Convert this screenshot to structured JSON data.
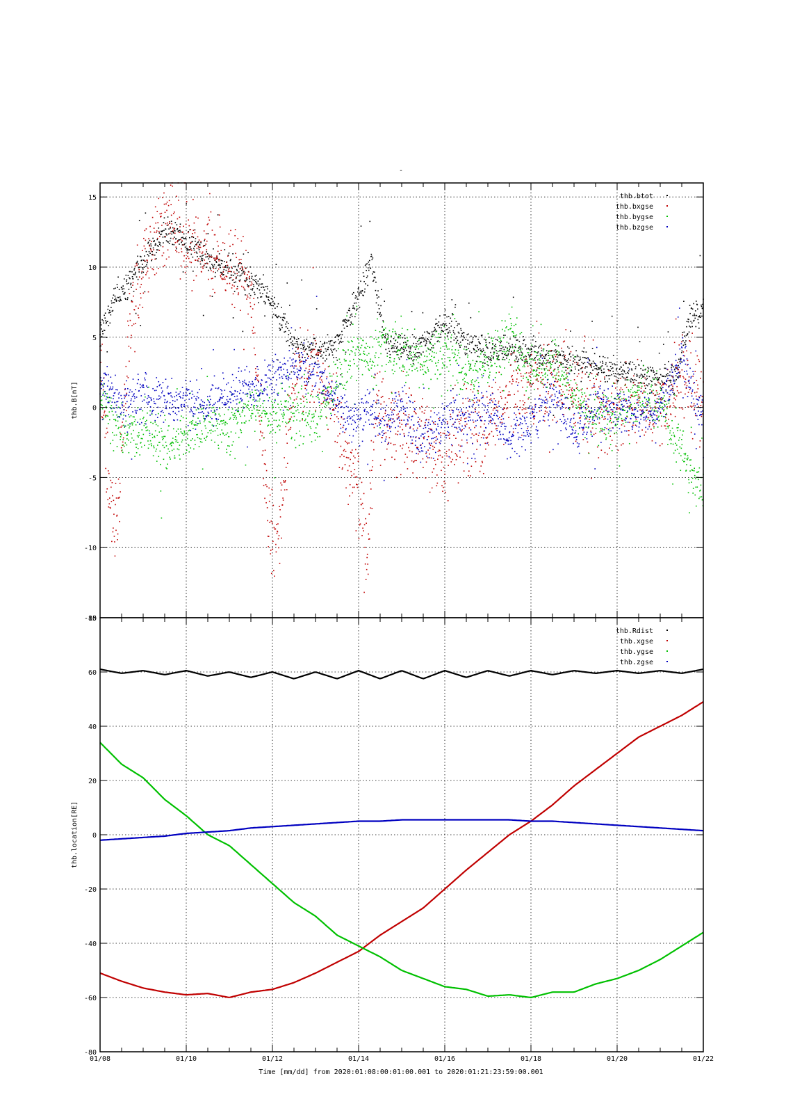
{
  "title": "-",
  "xlabel": "Time [mm/dd]  from 2020:01:08:00:01:00.001  to  2020:01:21:23:59:00.001",
  "x_ticks": [
    "01/08",
    "01/10",
    "01/12",
    "01/14",
    "01/16",
    "01/18",
    "01/20",
    "01/22"
  ],
  "x_range_days": [
    8,
    22
  ],
  "colors": {
    "black": "#000000",
    "red": "#c00000",
    "green": "#00c000",
    "blue": "#0000c0"
  },
  "chart_data": [
    {
      "type": "scatter",
      "ylabel": "thb.B[nT]",
      "ylim": [
        -15,
        16
      ],
      "y_ticks": [
        15,
        10,
        5,
        0,
        -5,
        -10,
        -15
      ],
      "grid": true,
      "legend_position": "top-right",
      "series": [
        {
          "name": "thb.btot",
          "color": "#000000",
          "x": [
            8.0,
            8.3,
            8.6,
            9.0,
            9.5,
            10.0,
            10.5,
            11.0,
            11.5,
            12.0,
            12.5,
            13.0,
            13.5,
            14.0,
            14.3,
            14.6,
            15.0,
            15.5,
            16.0,
            16.5,
            17.0,
            17.5,
            18.0,
            18.5,
            19.0,
            19.5,
            20.0,
            20.5,
            21.0,
            21.4,
            21.7,
            22.0
          ],
          "y": [
            5.0,
            7.5,
            8.5,
            10.5,
            12.5,
            12.0,
            10.5,
            10.0,
            9.0,
            7.5,
            4.5,
            4.0,
            4.5,
            8.0,
            10.5,
            4.5,
            4.0,
            4.5,
            6.0,
            4.5,
            4.0,
            4.0,
            4.0,
            3.5,
            3.5,
            3.0,
            2.5,
            2.5,
            2.0,
            2.5,
            6.5,
            7.0
          ]
        },
        {
          "name": "thb.bxgse",
          "color": "#c00000",
          "x": [
            8.0,
            8.2,
            8.4,
            8.7,
            9.0,
            9.3,
            9.6,
            9.8,
            10.0,
            10.5,
            11.0,
            11.5,
            11.9,
            12.1,
            12.5,
            13.0,
            13.5,
            14.0,
            14.2,
            14.4,
            14.7,
            15.0,
            15.5,
            16.0,
            16.5,
            17.0,
            17.5,
            18.0,
            18.5,
            19.0,
            19.5,
            20.0,
            20.5,
            21.0,
            21.5,
            22.0
          ],
          "y": [
            4.0,
            -6.0,
            -9.0,
            7.0,
            10.0,
            12.0,
            13.0,
            12.5,
            12.0,
            11.0,
            10.0,
            9.0,
            -8.0,
            -10.0,
            2.0,
            3.0,
            -1.0,
            -6.0,
            -11.0,
            1.0,
            -2.0,
            -1.5,
            -2.0,
            -4.0,
            -1.0,
            -1.5,
            0.5,
            1.5,
            2.0,
            1.0,
            -0.5,
            0.0,
            0.5,
            0.0,
            2.5,
            0.5
          ]
        },
        {
          "name": "thb.bygse",
          "color": "#00c000",
          "x": [
            8.0,
            8.3,
            8.6,
            9.0,
            9.5,
            10.0,
            10.5,
            11.0,
            11.5,
            12.0,
            12.5,
            13.0,
            13.5,
            14.0,
            14.3,
            14.6,
            15.0,
            15.5,
            16.0,
            16.5,
            17.0,
            17.5,
            18.0,
            18.5,
            19.0,
            19.5,
            20.0,
            20.5,
            21.0,
            21.5,
            21.8,
            22.0
          ],
          "y": [
            1.0,
            -1.0,
            -2.0,
            -1.5,
            -2.5,
            -2.0,
            -1.0,
            -1.5,
            0.0,
            -0.5,
            0.0,
            -1.0,
            2.0,
            4.0,
            3.0,
            4.5,
            4.0,
            3.0,
            4.0,
            2.5,
            3.0,
            5.0,
            2.5,
            3.5,
            1.0,
            -1.0,
            -0.5,
            1.0,
            0.0,
            -3.0,
            -5.5,
            -6.0
          ]
        },
        {
          "name": "thb.bzgse",
          "color": "#0000c0",
          "x": [
            8.0,
            8.3,
            8.6,
            9.0,
            9.5,
            10.0,
            10.5,
            11.0,
            11.5,
            12.0,
            12.5,
            13.0,
            13.5,
            14.0,
            14.3,
            14.6,
            15.0,
            15.5,
            16.0,
            16.5,
            17.0,
            17.5,
            18.0,
            18.5,
            19.0,
            19.5,
            20.0,
            20.5,
            21.0,
            21.5,
            21.8,
            22.0
          ],
          "y": [
            2.0,
            1.0,
            0.0,
            1.0,
            0.5,
            0.5,
            0.0,
            1.0,
            1.5,
            2.0,
            3.0,
            2.5,
            0.0,
            -1.0,
            0.0,
            -1.5,
            0.0,
            -2.5,
            -1.0,
            -1.0,
            0.0,
            -2.5,
            -1.0,
            1.0,
            -2.0,
            0.0,
            0.0,
            -0.5,
            0.0,
            4.0,
            0.5,
            -1.0
          ]
        }
      ]
    },
    {
      "type": "line",
      "ylabel": "thb.location[RE]",
      "ylim": [
        -80,
        80
      ],
      "y_ticks": [
        80,
        60,
        40,
        20,
        0,
        -20,
        -40,
        -60,
        -80
      ],
      "grid": true,
      "legend_position": "top-right",
      "series": [
        {
          "name": "thb.Rdist",
          "color": "#000000",
          "x": [
            8.0,
            8.5,
            9.0,
            9.5,
            10.0,
            10.5,
            11.0,
            11.5,
            12.0,
            12.5,
            13.0,
            13.5,
            14.0,
            14.5,
            15.0,
            15.5,
            16.0,
            16.5,
            17.0,
            17.5,
            18.0,
            18.5,
            19.0,
            19.5,
            20.0,
            20.5,
            21.0,
            21.5,
            22.0
          ],
          "y": [
            61.0,
            59.5,
            60.5,
            59.0,
            60.5,
            58.5,
            60.0,
            58.0,
            60.0,
            57.5,
            60.0,
            57.5,
            60.5,
            57.5,
            60.5,
            57.5,
            60.5,
            58.0,
            60.5,
            58.5,
            60.5,
            59.0,
            60.5,
            59.5,
            60.5,
            59.5,
            60.5,
            59.5,
            61.0
          ]
        },
        {
          "name": "thb.xgse",
          "color": "#c00000",
          "x": [
            8.0,
            8.5,
            9.0,
            9.5,
            10.0,
            10.5,
            11.0,
            11.5,
            12.0,
            12.5,
            13.0,
            13.5,
            14.0,
            14.5,
            15.0,
            15.5,
            16.0,
            16.5,
            17.0,
            17.5,
            18.0,
            18.5,
            19.0,
            19.5,
            20.0,
            20.5,
            21.0,
            21.5,
            22.0
          ],
          "y": [
            -51.0,
            -54.0,
            -56.5,
            -58.0,
            -59.0,
            -58.5,
            -60.0,
            -58.0,
            -57.0,
            -54.5,
            -51.0,
            -47.0,
            -43.0,
            -37.0,
            -32.0,
            -27.0,
            -20.0,
            -13.0,
            -6.5,
            0.0,
            5.0,
            11.0,
            18.0,
            24.0,
            30.0,
            36.0,
            40.0,
            44.0,
            49.0
          ]
        },
        {
          "name": "thb.ygse",
          "color": "#00c000",
          "x": [
            8.0,
            8.5,
            9.0,
            9.5,
            10.0,
            10.5,
            11.0,
            11.5,
            12.0,
            12.5,
            13.0,
            13.5,
            14.0,
            14.5,
            15.0,
            15.5,
            16.0,
            16.5,
            17.0,
            17.5,
            18.0,
            18.5,
            19.0,
            19.5,
            20.0,
            20.5,
            21.0,
            21.5,
            22.0
          ],
          "y": [
            34.0,
            26.0,
            21.0,
            13.0,
            7.0,
            0.0,
            -4.0,
            -11.0,
            -18.0,
            -25.0,
            -30.0,
            -37.0,
            -41.0,
            -45.0,
            -50.0,
            -53.0,
            -56.0,
            -57.0,
            -59.5,
            -59.0,
            -60.0,
            -58.0,
            -58.0,
            -55.0,
            -53.0,
            -50.0,
            -46.0,
            -41.0,
            -36.0
          ]
        },
        {
          "name": "thb.zgse",
          "color": "#0000c0",
          "x": [
            8.0,
            8.5,
            9.0,
            9.5,
            10.0,
            10.5,
            11.0,
            11.5,
            12.0,
            12.5,
            13.0,
            13.5,
            14.0,
            14.5,
            15.0,
            15.5,
            16.0,
            16.5,
            17.0,
            17.5,
            18.0,
            18.5,
            19.0,
            19.5,
            20.0,
            20.5,
            21.0,
            21.5,
            22.0
          ],
          "y": [
            -2.0,
            -1.5,
            -1.0,
            -0.5,
            0.5,
            1.0,
            1.5,
            2.5,
            3.0,
            3.5,
            4.0,
            4.5,
            5.0,
            5.0,
            5.5,
            5.5,
            5.5,
            5.5,
            5.5,
            5.5,
            5.0,
            5.0,
            4.5,
            4.0,
            3.5,
            3.0,
            2.5,
            2.0,
            1.5
          ]
        }
      ]
    }
  ]
}
